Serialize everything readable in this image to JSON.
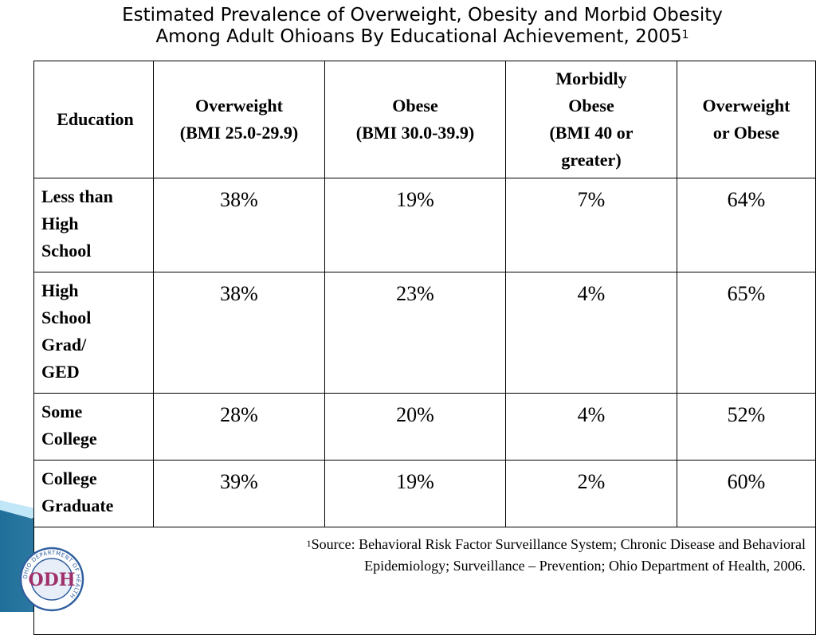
{
  "title": {
    "line1": "Estimated Prevalence of Overweight, Obesity and Morbid Obesity",
    "line2": "Among Adult Ohioans By Educational Achievement, 2005",
    "footnote_marker": "1"
  },
  "chart_data": {
    "type": "table",
    "columns": [
      [
        "Education"
      ],
      [
        "Overweight",
        "(BMI 25.0-29.9)"
      ],
      [
        "Obese",
        "(BMI 30.0-39.9)"
      ],
      [
        "Morbidly",
        "Obese",
        "(BMI 40 or",
        "greater)"
      ],
      [
        "Overweight",
        "or Obese"
      ]
    ],
    "rows": [
      {
        "label": [
          "Less than",
          "High",
          "School"
        ],
        "values": [
          "38%",
          "19%",
          "7%",
          "64%"
        ]
      },
      {
        "label": [
          "High",
          "School",
          "Grad/",
          "GED"
        ],
        "values": [
          "38%",
          "23%",
          "4%",
          "65%"
        ]
      },
      {
        "label": [
          "Some",
          "College"
        ],
        "values": [
          "28%",
          "20%",
          "4%",
          "52%"
        ]
      },
      {
        "label": [
          "College",
          "Graduate"
        ],
        "values": [
          "39%",
          "19%",
          "2%",
          "60%"
        ]
      }
    ],
    "source": {
      "marker": "1",
      "line1": "Source: Behavioral Risk Factor Surveillance System; Chronic Disease and Behavioral",
      "line2": "Epidemiology; Surveillance – Prevention; Ohio Department of Health, 2006."
    }
  },
  "logo": {
    "text": "ODH",
    "ring_text": "OHIO DEPARTMENT OF HEALTH"
  },
  "colors": {
    "decor_blue_dark": "#1f6f9a",
    "decor_blue_light": "#9fd3ec",
    "decor_black": "#000000",
    "logo_ring": "#2f5fa0",
    "logo_text": "#a0306a"
  }
}
